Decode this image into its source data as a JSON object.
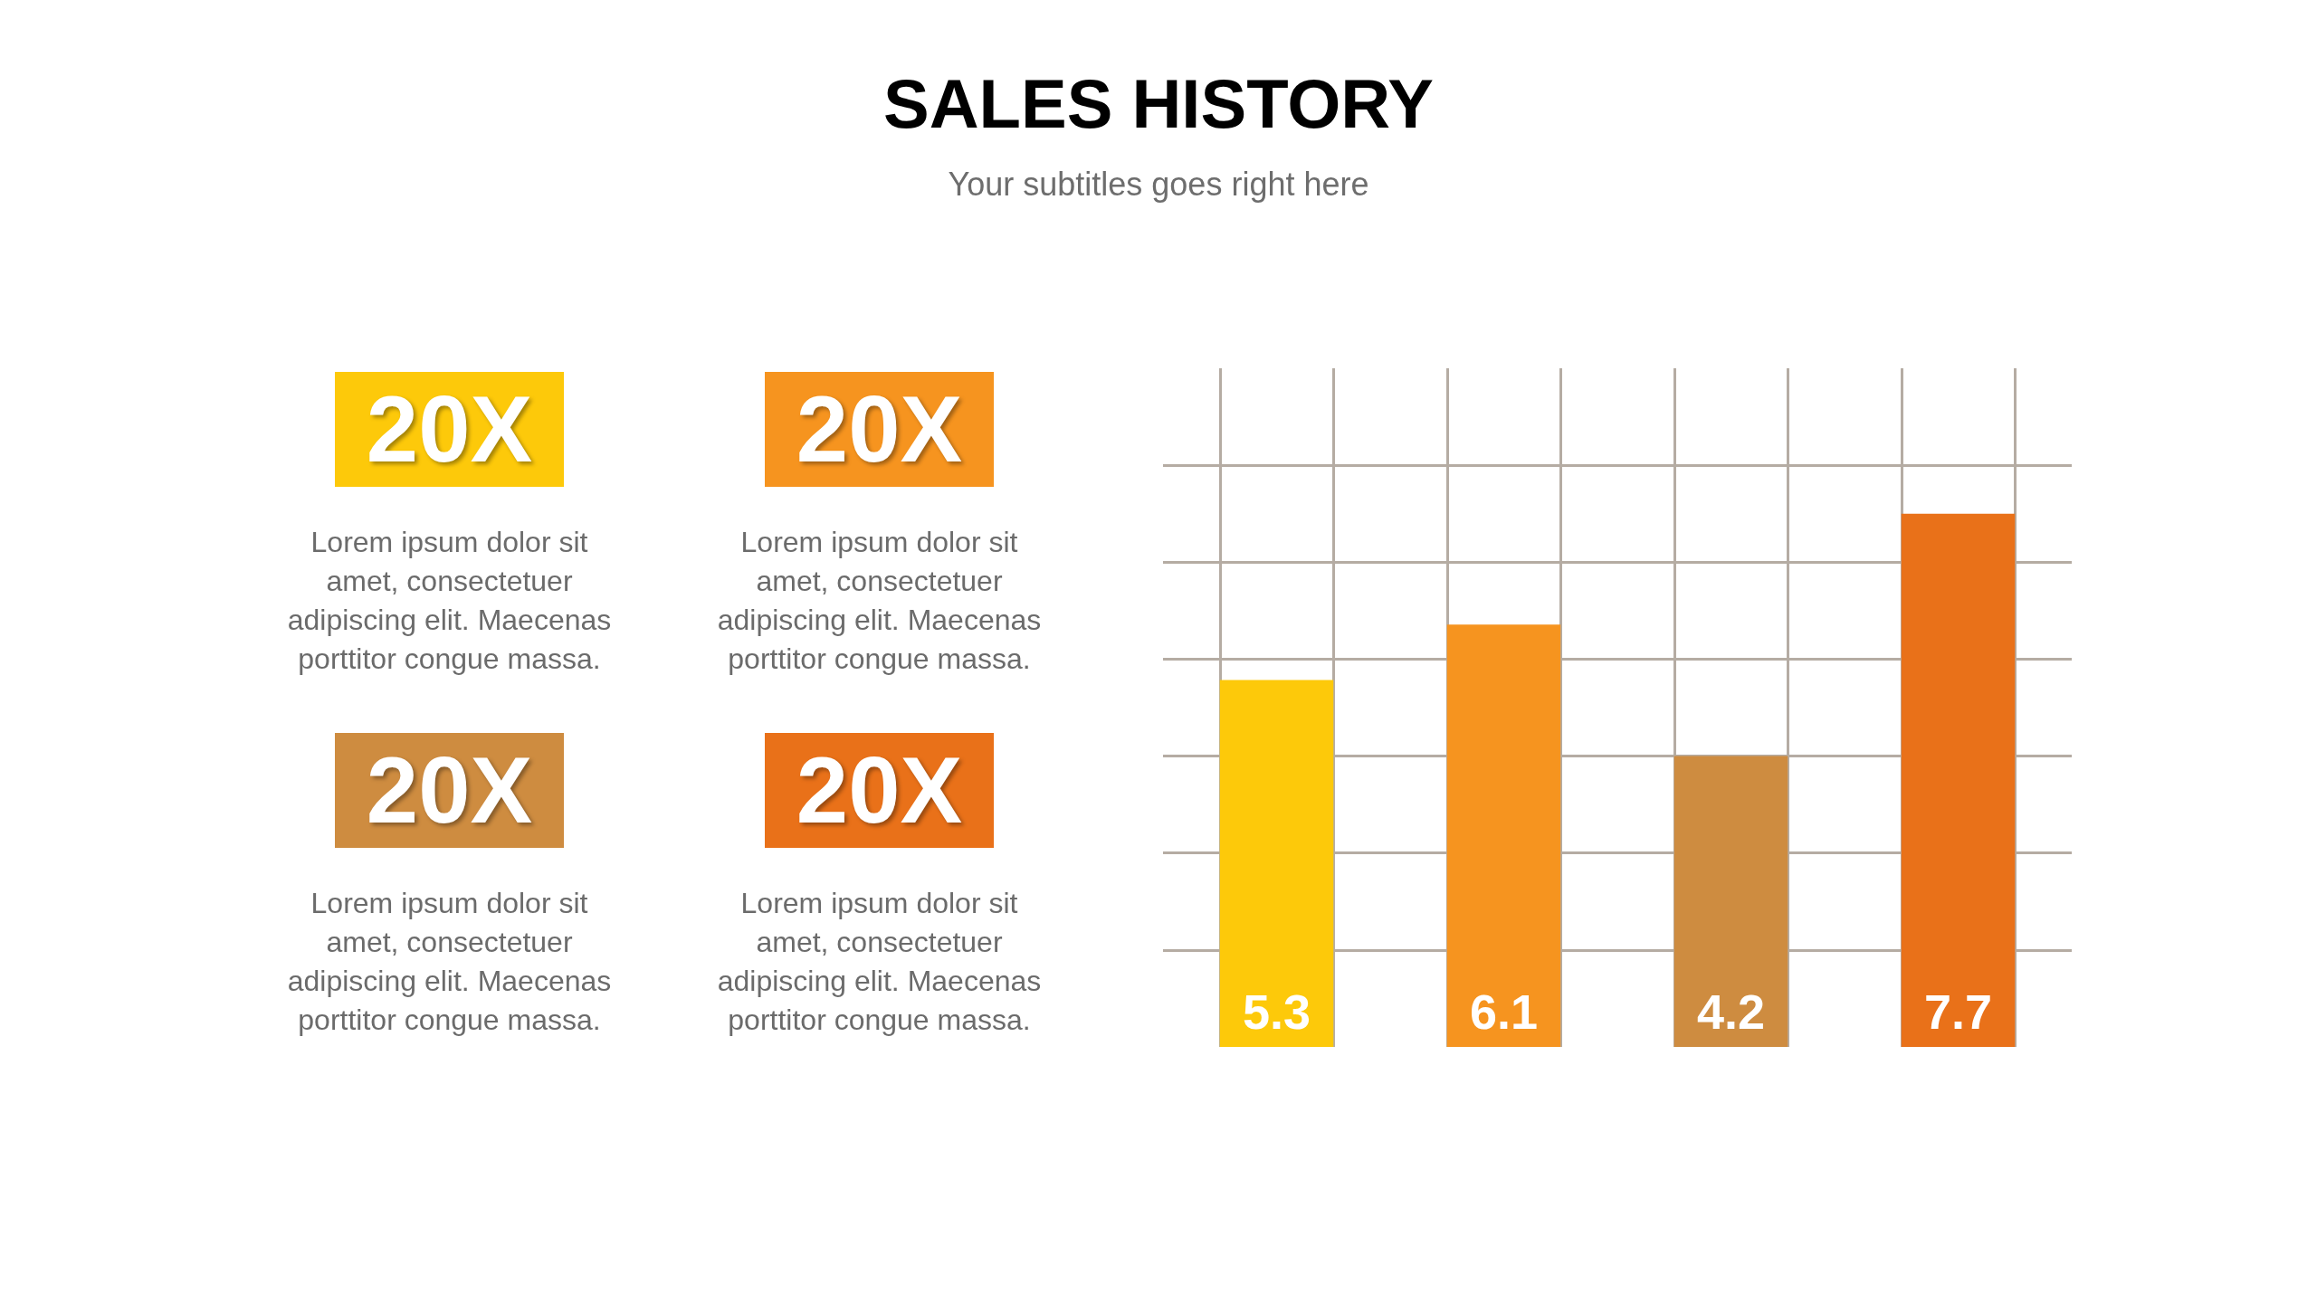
{
  "chart_data": [
    {
      "type": "bar",
      "title": "SALES HISTORY",
      "subtitle": "Your subtitles goes right here",
      "categories": [
        null,
        null,
        null,
        null
      ],
      "values": [
        5.3,
        6.1,
        4.2,
        7.7
      ],
      "colors": [
        "#fdc90a",
        "#f6941f",
        "#ce8c40",
        "#e97119"
      ],
      "data_labels": true,
      "ylim": [
        0,
        9.8
      ],
      "yticks": [
        {
          "value": 1.4,
          "label": null
        },
        {
          "value": 2.8,
          "label": null
        },
        {
          "value": 4.2,
          "label": null
        },
        {
          "value": 5.6,
          "label": null
        },
        {
          "value": 7,
          "label": null
        },
        {
          "value": 8.4,
          "label": null
        }
      ],
      "grid": true
    },
    {
      "type": "other",
      "annotations": [
        "20X",
        "Lorem ipsum dolor sit amet, consectetuer adipiscing elit. Maecenas porttitor congue massa.",
        "20X",
        "Lorem ipsum dolor sit amet, consectetuer adipiscing elit. Maecenas porttitor congue massa.",
        "20X",
        "Lorem ipsum dolor sit amet, consectetuer adipiscing elit. Maecenas porttitor congue massa.",
        "20X",
        "Lorem ipsum dolor sit amet, consectetuer adipiscing elit. Maecenas porttitor congue massa."
      ],
      "colors": [
        "#fdc90a",
        "#f6941f",
        "#ce8c40",
        "#e97119"
      ]
    }
  ]
}
